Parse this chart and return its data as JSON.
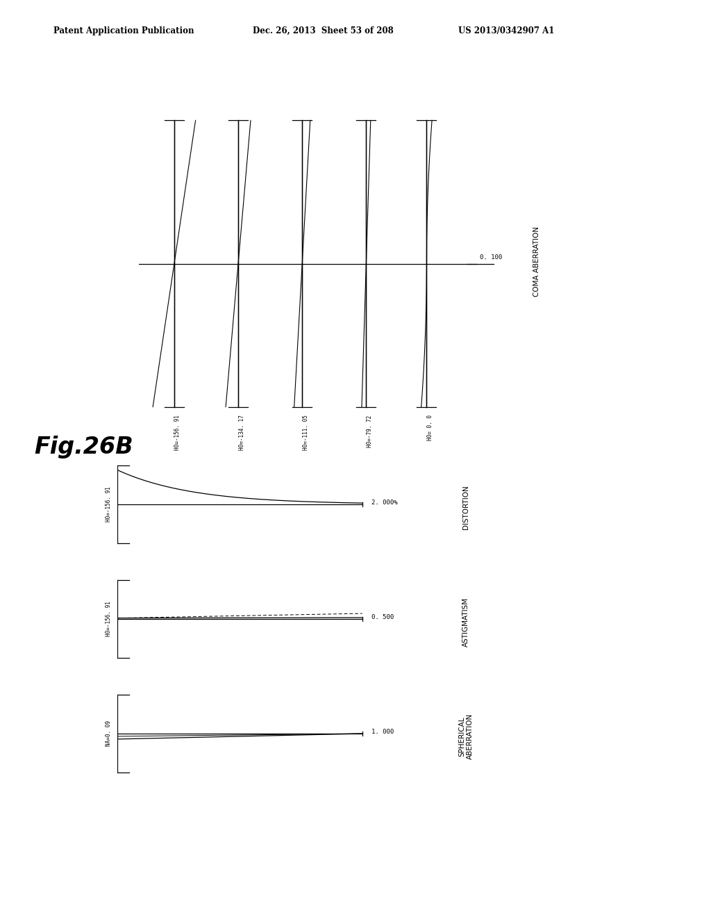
{
  "header_left": "Patent Application Publication",
  "header_mid": "Dec. 26, 2013  Sheet 53 of 208",
  "header_right": "US 2013/0342907 A1",
  "fig_label": "Fig.26B",
  "background_color": "#ffffff",
  "coma_title": "COMA ABERRATION",
  "distortion_title": "DISTORTION",
  "astigmatism_title": "ASTIGMATISM",
  "spherical_title": "SPHERICAL\nABERRATION",
  "coma_scale": "0. 100",
  "distortion_scale": "2. 000%",
  "astigmatism_scale": "0. 500",
  "spherical_scale": "1. 000",
  "coma_labels": [
    "H0=-156. 91",
    "H0=-134. 17",
    "H0=-111. 05",
    "H0=-79. 72",
    "H0= 0. 0"
  ],
  "na_label": "NA=0. 09"
}
